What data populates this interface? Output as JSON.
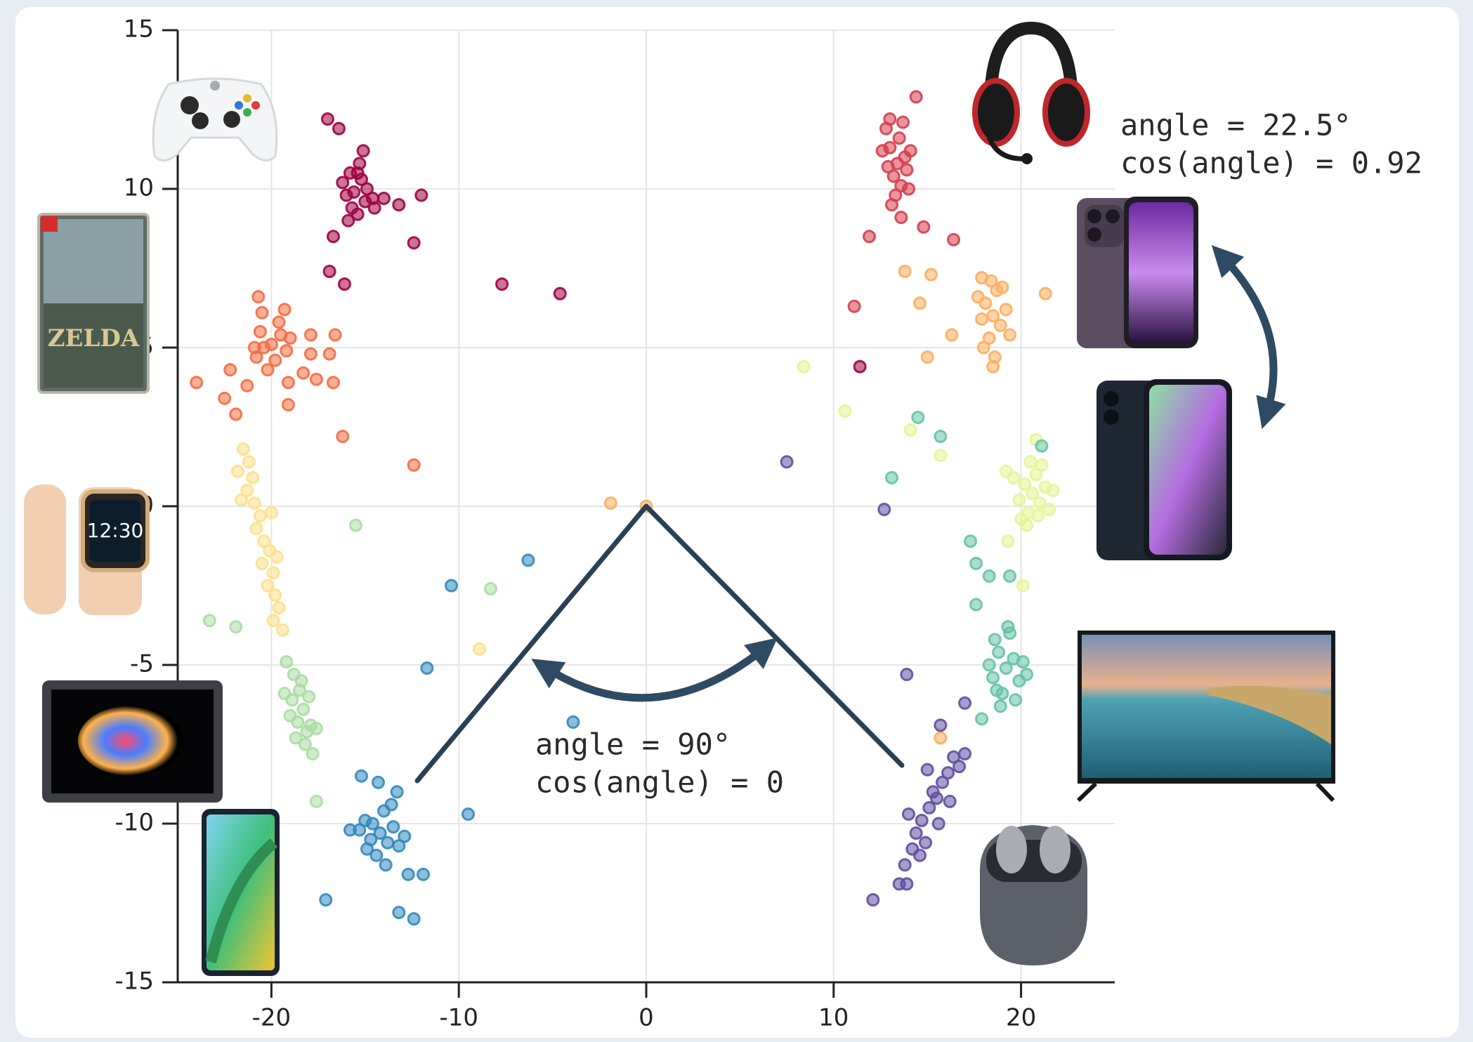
{
  "chart_data": {
    "type": "scatter",
    "xlim": [
      -25,
      25
    ],
    "ylim": [
      -15,
      15
    ],
    "xticks": [
      -20,
      -10,
      0,
      10,
      20
    ],
    "yticks": [
      -15,
      -10,
      -5,
      0,
      5,
      10,
      15
    ],
    "grid": true,
    "annotations": [
      "angle = 22.5°",
      "cos(angle) = 0.92",
      "angle = 90°",
      "cos(angle) = 0"
    ],
    "series": [
      {
        "color": "#9e0142",
        "x": [
          -15.8,
          -15.2,
          -15.6,
          -15.0,
          -16.0,
          -15.4,
          -14.9,
          -15.7,
          -15.3,
          -16.2,
          -14.6,
          -15.9,
          -15.1,
          -16.4,
          -17.0,
          -14.0,
          -13.2,
          -12.0,
          -12.4,
          -16.7,
          -16.9,
          -16.1,
          -7.7,
          -4.6,
          -15.4,
          -14.5,
          11.4
        ],
        "y": [
          10.5,
          10.3,
          9.9,
          9.6,
          9.8,
          9.2,
          10.0,
          9.4,
          10.8,
          10.2,
          9.7,
          9.0,
          11.2,
          11.9,
          12.2,
          9.7,
          9.5,
          9.8,
          8.3,
          8.5,
          7.4,
          7.0,
          7.0,
          6.7,
          10.5,
          9.4,
          4.4
        ]
      },
      {
        "color": "#d53e4f",
        "x": [
          13.4,
          13.0,
          13.8,
          13.2,
          13.6,
          12.9,
          13.9,
          13.5,
          12.8,
          13.3,
          14.1,
          13.1,
          13.7,
          12.6,
          14.0,
          14.4,
          14.8,
          16.4,
          11.9,
          11.1,
          13.6,
          13.0
        ],
        "y": [
          10.8,
          11.3,
          11.0,
          10.4,
          10.1,
          10.7,
          10.6,
          11.6,
          11.9,
          9.8,
          11.2,
          9.5,
          12.1,
          11.2,
          10.0,
          12.9,
          8.8,
          8.4,
          8.5,
          6.3,
          9.1,
          12.2
        ]
      },
      {
        "color": "#f46d43",
        "x": [
          -20.0,
          -19.5,
          -20.4,
          -19.8,
          -20.6,
          -19.2,
          -20.2,
          -19.6,
          -20.8,
          -19.0,
          -20.5,
          -19.3,
          -20.7,
          -19.1,
          -17.9,
          -16.6,
          -16.9,
          -17.9,
          -20.9,
          -22.2,
          -24.0,
          -21.3,
          -22.5,
          -21.9,
          -19.1,
          -18.3,
          -17.6,
          -16.7,
          -16.2,
          -12.4
        ],
        "y": [
          5.1,
          5.4,
          5.0,
          4.6,
          5.5,
          4.9,
          4.3,
          5.8,
          4.7,
          5.3,
          6.1,
          6.2,
          6.6,
          3.9,
          5.4,
          5.4,
          4.8,
          4.8,
          5.0,
          4.3,
          3.9,
          3.8,
          3.4,
          2.9,
          3.2,
          4.2,
          4.0,
          3.9,
          2.2,
          1.3
        ]
      },
      {
        "color": "#fdae61",
        "x": [
          18.5,
          18.1,
          18.9,
          18.3,
          19.2,
          17.9,
          18.7,
          19.4,
          18.0,
          18.6,
          19.0,
          17.7,
          18.4,
          17.9,
          13.8,
          15.2,
          14.6,
          16.3,
          21.3,
          15.0,
          18.5,
          15.7,
          -1.9,
          0.0
        ],
        "y": [
          6.0,
          6.4,
          5.7,
          5.3,
          6.2,
          5.9,
          6.8,
          5.4,
          5.0,
          4.7,
          6.9,
          6.6,
          7.1,
          7.2,
          7.4,
          7.3,
          6.4,
          5.4,
          6.7,
          4.7,
          4.4,
          -7.3,
          0.1,
          0.0
        ]
      },
      {
        "color": "#fee08b",
        "x": [
          -21.5,
          -21.2,
          -21.0,
          -21.3,
          -20.9,
          -20.6,
          -20.8,
          -20.4,
          -20.1,
          -20.5,
          -19.9,
          -20.2,
          -19.8,
          -19.6,
          -19.9,
          -21.6,
          -20.0,
          -19.7,
          -21.8,
          -19.4,
          -8.9
        ],
        "y": [
          1.8,
          1.4,
          0.9,
          0.5,
          0.1,
          -0.3,
          -0.7,
          -1.1,
          -1.4,
          -1.8,
          -2.1,
          -2.5,
          -2.8,
          -3.2,
          -3.6,
          0.2,
          -0.2,
          -1.6,
          1.1,
          -3.9,
          -4.5
        ]
      },
      {
        "color": "#e6f598",
        "x": [
          20.6,
          20.2,
          21.0,
          20.4,
          21.3,
          19.9,
          20.8,
          21.5,
          20.0,
          21.1,
          20.5,
          19.6,
          21.7,
          20.3,
          20.9,
          20.8,
          19.2,
          20.1,
          19.3,
          8.4,
          10.6,
          14.1,
          15.7
        ],
        "y": [
          0.4,
          0.7,
          0.1,
          -0.2,
          0.6,
          0.2,
          1.0,
          -0.1,
          -0.4,
          1.3,
          1.4,
          0.9,
          0.5,
          -0.6,
          -0.3,
          2.1,
          1.1,
          -2.5,
          -1.1,
          4.4,
          3.0,
          2.4,
          1.6
        ]
      },
      {
        "color": "#abdda4",
        "x": [
          -19.2,
          -18.8,
          -18.5,
          -18.9,
          -18.3,
          -18.6,
          -18.1,
          -18.4,
          -17.9,
          -18.2,
          -17.8,
          -19.0,
          -18.7,
          -17.6,
          -19.3,
          -18.0,
          -23.3,
          -21.9,
          -15.5,
          -8.3,
          -17.6
        ],
        "y": [
          -4.9,
          -5.3,
          -5.8,
          -6.1,
          -6.4,
          -6.8,
          -7.1,
          -5.5,
          -6.9,
          -7.5,
          -7.8,
          -6.6,
          -7.3,
          -7.0,
          -5.9,
          -6.0,
          -3.6,
          -3.8,
          -0.6,
          -2.6,
          -9.3
        ]
      },
      {
        "color": "#66c2a5",
        "x": [
          19.2,
          18.8,
          19.6,
          18.5,
          19.9,
          19.0,
          18.6,
          19.4,
          20.1,
          18.3,
          19.7,
          18.9,
          20.3,
          19.3,
          18.7,
          17.3,
          17.6,
          18.3,
          19.4,
          17.6,
          17.9,
          14.5,
          15.7,
          13.1,
          21.1
        ],
        "y": [
          -5.1,
          -4.6,
          -4.8,
          -5.4,
          -5.5,
          -5.9,
          -4.2,
          -4.0,
          -4.9,
          -5.0,
          -6.1,
          -6.3,
          -5.3,
          -3.8,
          -5.8,
          -1.1,
          -1.8,
          -2.2,
          -2.2,
          -3.1,
          -6.7,
          2.8,
          2.2,
          0.9,
          1.9
        ]
      },
      {
        "color": "#3288bd",
        "x": [
          -14.2,
          -14.6,
          -13.8,
          -14.9,
          -13.5,
          -14.4,
          -15.0,
          -14.0,
          -13.2,
          -14.7,
          -13.9,
          -15.3,
          -13.6,
          -12.9,
          -14.3,
          -15.2,
          -13.3,
          -15.8,
          -17.1,
          -12.4,
          -13.2,
          -11.9,
          -12.7,
          -9.5,
          -11.7,
          -10.4,
          -6.3,
          -3.9
        ],
        "y": [
          -10.3,
          -10.0,
          -10.6,
          -10.8,
          -10.1,
          -11.0,
          -9.9,
          -9.6,
          -10.7,
          -10.5,
          -11.3,
          -10.2,
          -9.4,
          -10.4,
          -8.7,
          -8.5,
          -9.0,
          -10.2,
          -12.4,
          -13.0,
          -12.8,
          -11.6,
          -11.6,
          -9.7,
          -5.1,
          -2.5,
          -1.7,
          -6.8
        ]
      },
      {
        "color": "#5e4fa2",
        "x": [
          15.1,
          14.7,
          15.5,
          14.4,
          15.8,
          14.9,
          16.1,
          14.2,
          15.3,
          16.4,
          14.0,
          15.6,
          16.7,
          13.8,
          15.0,
          17.0,
          16.2,
          14.6,
          13.5,
          12.1,
          13.9,
          13.9,
          17.0,
          15.7,
          12.7,
          7.5
        ],
        "y": [
          -9.5,
          -9.9,
          -9.2,
          -10.3,
          -8.7,
          -10.6,
          -8.4,
          -10.8,
          -9.0,
          -7.9,
          -9.7,
          -10.0,
          -8.2,
          -11.3,
          -8.3,
          -7.8,
          -9.3,
          -11.0,
          -11.9,
          -12.4,
          -11.9,
          -5.3,
          -6.2,
          -6.9,
          -0.1,
          1.4
        ]
      }
    ]
  }
}
